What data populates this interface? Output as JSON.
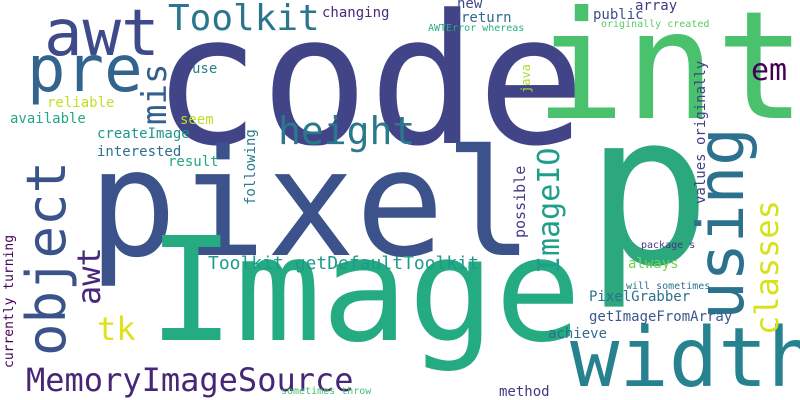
{
  "words": {
    "code": {
      "text": "code",
      "color": "#414487"
    },
    "int": {
      "text": "int",
      "color": "#4ac16d"
    },
    "p": {
      "text": "p",
      "color": "#2ba87d"
    },
    "pixel": {
      "text": "pixel",
      "color": "#3b528b"
    },
    "image_big": {
      "text": "Image",
      "color": "#25ab82"
    },
    "awt_top": {
      "text": "awt",
      "color": "#3e4a89"
    },
    "pre": {
      "text": "pre",
      "color": "#32648e"
    },
    "toolkit_top": {
      "text": "Toolkit",
      "color": "#2a768e"
    },
    "height": {
      "text": "height",
      "color": "#2a788e"
    },
    "mis": {
      "text": "mis",
      "color": "#355f8d"
    },
    "em": {
      "text": "em",
      "color": "#440154"
    },
    "object": {
      "text": "object",
      "color": "#3b528b"
    },
    "awt_mid": {
      "text": "awt",
      "color": "#482878"
    },
    "using": {
      "text": "using",
      "color": "#2c728e"
    },
    "classes": {
      "text": "classes",
      "color": "#d8e219"
    },
    "tk": {
      "text": "tk",
      "color": "#dde318"
    },
    "width": {
      "text": "width",
      "color": "#26828e"
    },
    "memoryimagesource": {
      "text": "MemoryImageSource",
      "color": "#482677"
    },
    "imageio": {
      "text": "ImageIO",
      "color": "#1f9e89"
    },
    "toolkit_default": {
      "text": "Toolkit getDefaultToolkit",
      "color": "#1e9b8a"
    },
    "pixelgrabber": {
      "text": "PixelGrabber",
      "color": "#2d708e"
    },
    "getimagefromarray": {
      "text": "getImageFromArray",
      "color": "#38588c"
    },
    "achieve": {
      "text": "achieve",
      "color": "#2f6c8e"
    },
    "always": {
      "text": "always",
      "color": "#75d054"
    },
    "method": {
      "text": "method",
      "color": "#453781"
    },
    "new": {
      "text": "new",
      "color": "#3f4788"
    },
    "return": {
      "text": "return",
      "color": "#31688e"
    },
    "changing": {
      "text": "changing",
      "color": "#472c7a"
    },
    "public": {
      "text": "public",
      "color": "#3d4d8a"
    },
    "array": {
      "text": "array",
      "color": "#453882"
    },
    "originally_created": {
      "text": "originally created",
      "color": "#5ec962"
    },
    "awterror": {
      "text": "AWTError whereas",
      "color": "#29af7f"
    },
    "use": {
      "text": "use",
      "color": "#277f8e"
    },
    "java": {
      "text": "java",
      "color": "#addc30"
    },
    "values_originally": {
      "text": "values originally",
      "color": "#424186"
    },
    "reliable": {
      "text": "reliable",
      "color": "#c2df23"
    },
    "available": {
      "text": "available",
      "color": "#22a884"
    },
    "seem": {
      "text": "seem",
      "color": "#bddf26"
    },
    "createimage": {
      "text": "createImage",
      "color": "#1f968b"
    },
    "interested": {
      "text": "interested",
      "color": "#2e6f8e"
    },
    "result": {
      "text": "result",
      "color": "#22a785"
    },
    "following": {
      "text": "following",
      "color": "#287d8e"
    },
    "possible": {
      "text": "possible",
      "color": "#443983"
    },
    "currently_turning": {
      "text": "currently turning",
      "color": "#440154"
    },
    "package_s": {
      "text": "package s",
      "color": "#453781"
    },
    "will_sometimes": {
      "text": "will sometimes",
      "color": "#2c728e"
    },
    "sometimes_throw": {
      "text": "sometimes throw",
      "color": "#46c06f"
    }
  }
}
